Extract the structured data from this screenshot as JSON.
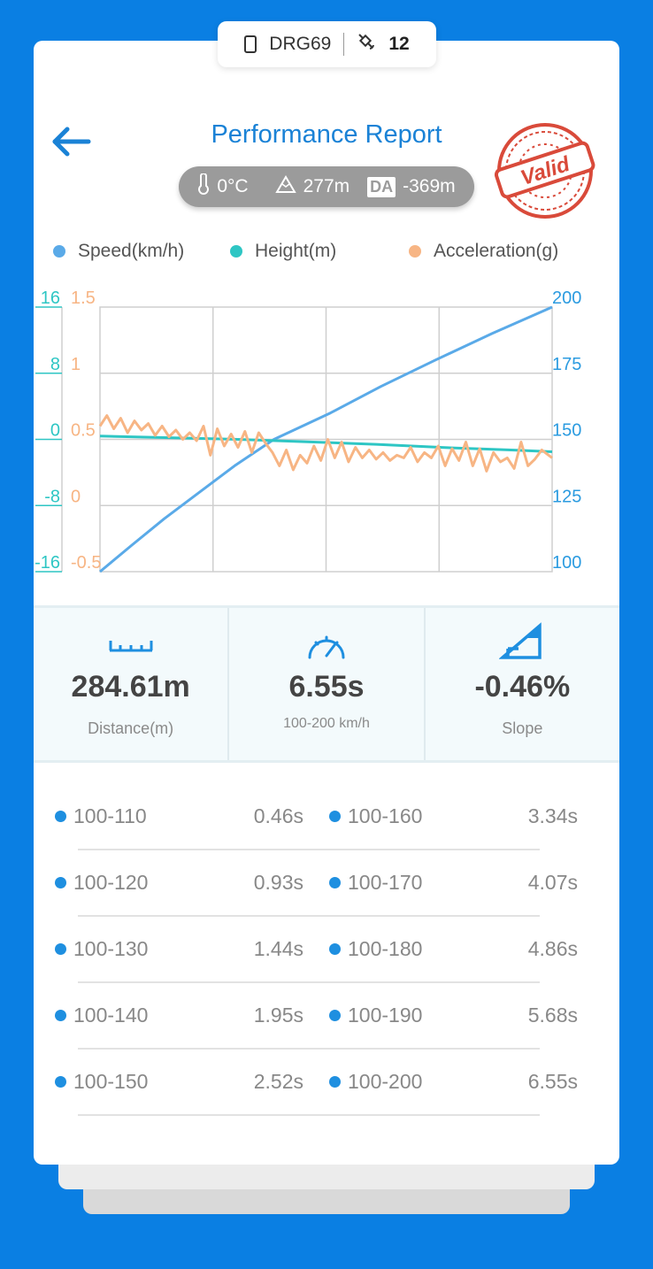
{
  "device": {
    "name": "DRG69",
    "satellites": "12"
  },
  "header": {
    "title": "Performance Report"
  },
  "environment": {
    "temperature": "0°C",
    "altitude": "277m",
    "da_label": "DA",
    "density_altitude": "-369m"
  },
  "stamp": {
    "text": "Valid"
  },
  "legend": [
    {
      "label": "Speed(km/h)",
      "color": "#5aaae8"
    },
    {
      "label": "Height(m)",
      "color": "#2ec6c4"
    },
    {
      "label": "Acceleration(g)",
      "color": "#f7b584"
    }
  ],
  "chart_data": {
    "type": "line",
    "axes": {
      "height_left": {
        "ticks": [
          "16",
          "8",
          "0",
          "-8",
          "-16"
        ],
        "range": [
          -16,
          16
        ],
        "color": "#2ec6c4"
      },
      "accel_left": {
        "ticks": [
          "1.5",
          "1",
          "0.5",
          "0",
          "-0.5"
        ],
        "range": [
          -0.5,
          1.5
        ],
        "color": "#f7b584"
      },
      "speed_right": {
        "ticks": [
          "200",
          "175",
          "150",
          "125",
          "100"
        ],
        "range": [
          100,
          200
        ],
        "color": "#2b9be0"
      }
    },
    "x_range": [
      0,
      6.55
    ],
    "grid": true,
    "series": [
      {
        "name": "Speed(km/h)",
        "axis": "speed_right",
        "color": "#5aaae8",
        "x": [
          0,
          0.46,
          0.93,
          1.44,
          1.95,
          2.52,
          3.34,
          4.07,
          4.86,
          5.68,
          6.55
        ],
        "y": [
          100,
          110,
          120,
          130,
          140,
          150,
          160,
          170,
          180,
          190,
          200
        ]
      },
      {
        "name": "Height(m)",
        "axis": "height_left",
        "color": "#2ec6c4",
        "x": [
          0,
          1,
          2,
          3,
          4,
          5,
          6,
          6.55
        ],
        "y": [
          0.4,
          0.2,
          0.0,
          -0.3,
          -0.6,
          -1.0,
          -1.3,
          -1.5
        ]
      },
      {
        "name": "Acceleration(g)",
        "axis": "accel_left",
        "color": "#f7b584",
        "x": [
          0,
          0.1,
          0.2,
          0.3,
          0.4,
          0.5,
          0.6,
          0.7,
          0.8,
          0.9,
          1.0,
          1.1,
          1.2,
          1.3,
          1.4,
          1.5,
          1.6,
          1.7,
          1.8,
          1.9,
          2.0,
          2.1,
          2.2,
          2.3,
          2.4,
          2.5,
          2.6,
          2.7,
          2.8,
          2.9,
          3.0,
          3.1,
          3.2,
          3.3,
          3.4,
          3.5,
          3.6,
          3.7,
          3.8,
          3.9,
          4.0,
          4.1,
          4.2,
          4.3,
          4.4,
          4.5,
          4.6,
          4.7,
          4.8,
          4.9,
          5.0,
          5.1,
          5.2,
          5.3,
          5.4,
          5.5,
          5.6,
          5.7,
          5.8,
          5.9,
          6.0,
          6.1,
          6.2,
          6.3,
          6.4,
          6.55
        ],
        "y": [
          0.6,
          0.68,
          0.58,
          0.66,
          0.55,
          0.64,
          0.57,
          0.62,
          0.53,
          0.6,
          0.52,
          0.57,
          0.5,
          0.55,
          0.49,
          0.6,
          0.38,
          0.58,
          0.45,
          0.54,
          0.44,
          0.56,
          0.4,
          0.55,
          0.47,
          0.4,
          0.3,
          0.42,
          0.27,
          0.38,
          0.32,
          0.45,
          0.34,
          0.5,
          0.36,
          0.48,
          0.33,
          0.44,
          0.36,
          0.42,
          0.35,
          0.4,
          0.34,
          0.38,
          0.36,
          0.44,
          0.33,
          0.4,
          0.36,
          0.45,
          0.3,
          0.43,
          0.34,
          0.48,
          0.3,
          0.43,
          0.26,
          0.4,
          0.33,
          0.36,
          0.28,
          0.48,
          0.3,
          0.35,
          0.42,
          0.36
        ]
      }
    ]
  },
  "metrics": [
    {
      "value": "284.61m",
      "label": "Distance(m)",
      "icon": "ruler-icon"
    },
    {
      "value": "6.55s",
      "label": "100-200 km/h",
      "icon": "speedometer-icon"
    },
    {
      "value": "-0.46%",
      "label": "Slope",
      "icon": "slope-icon"
    }
  ],
  "splits": [
    [
      {
        "range": "100-110",
        "time": "0.46s"
      },
      {
        "range": "100-160",
        "time": "3.34s"
      }
    ],
    [
      {
        "range": "100-120",
        "time": "0.93s"
      },
      {
        "range": "100-170",
        "time": "4.07s"
      }
    ],
    [
      {
        "range": "100-130",
        "time": "1.44s"
      },
      {
        "range": "100-180",
        "time": "4.86s"
      }
    ],
    [
      {
        "range": "100-140",
        "time": "1.95s"
      },
      {
        "range": "100-190",
        "time": "5.68s"
      }
    ],
    [
      {
        "range": "100-150",
        "time": "2.52s"
      },
      {
        "range": "100-200",
        "time": "6.55s"
      }
    ]
  ]
}
